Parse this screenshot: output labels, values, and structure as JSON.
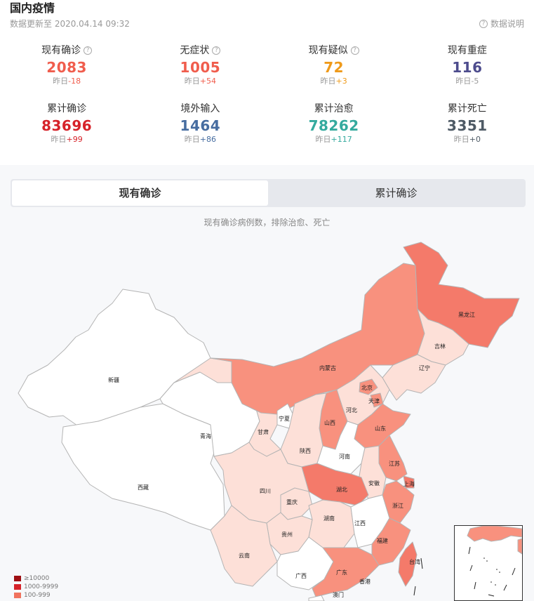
{
  "header": {
    "title": "国内疫情",
    "updated": "数据更新至 2020.04.14 09:32",
    "explain_label": "数据说明",
    "qmark": "?"
  },
  "stats": [
    {
      "label": "现有确诊",
      "help": true,
      "value": "2083",
      "delta_prefix": "昨日",
      "delta": "-18",
      "color": "#f05d4d",
      "delta_color": "#f05d4d"
    },
    {
      "label": "无症状",
      "help": true,
      "value": "1005",
      "delta_prefix": "昨日",
      "delta": "+54",
      "color": "#f05d4d",
      "delta_color": "#f05d4d"
    },
    {
      "label": "现有疑似",
      "help": true,
      "value": "72",
      "delta_prefix": "昨日",
      "delta": "+3",
      "color": "#ef9a1a",
      "delta_color": "#ef9a1a"
    },
    {
      "label": "现有重症",
      "help": false,
      "value": "116",
      "delta_prefix": "昨日",
      "delta": "-5",
      "color": "#4d4c8d",
      "delta_color": "#999999"
    },
    {
      "label": "累计确诊",
      "help": false,
      "value": "83696",
      "delta_prefix": "昨日",
      "delta": "+99",
      "color": "#d6232a",
      "delta_color": "#d6232a"
    },
    {
      "label": "境外输入",
      "help": false,
      "value": "1464",
      "delta_prefix": "昨日",
      "delta": "+86",
      "color": "#476da0",
      "delta_color": "#476da0"
    },
    {
      "label": "累计治愈",
      "help": false,
      "value": "78262",
      "delta_prefix": "昨日",
      "delta": "+117",
      "color": "#34aa9e",
      "delta_color": "#34aa9e"
    },
    {
      "label": "累计死亡",
      "help": false,
      "value": "3351",
      "delta_prefix": "昨日",
      "delta": "+0",
      "color": "#4e5a65",
      "delta_color": "#4e5a65"
    }
  ],
  "tabs": [
    {
      "label": "现有确诊",
      "active": true
    },
    {
      "label": "累计确诊",
      "active": false
    }
  ],
  "map_note": "现有确诊病例数，排除治愈、死亡",
  "provinces": {
    "xinjiang": "新疆",
    "xizang": "西藏",
    "qinghai": "青海",
    "gansu": "甘肃",
    "neimenggu": "内蒙古",
    "heilongjiang": "黑龙江",
    "jilin": "吉林",
    "liaoning": "辽宁",
    "beijing": "北京",
    "tianjin": "天津",
    "hebei": "河北",
    "shanxi": "山西",
    "shandong": "山东",
    "ningxia": "宁夏",
    "shaanxi": "陕西",
    "henan": "河南",
    "jiangsu": "江苏",
    "anhui": "安徽",
    "shanghai": "上海",
    "hubei": "湖北",
    "sichuan": "四川",
    "chongqing": "重庆",
    "zhejiang": "浙江",
    "hunan": "湖南",
    "jiangxi": "江西",
    "guizhou": "贵州",
    "fujian": "福建",
    "yunnan": "云南",
    "guangxi": "广西",
    "guangdong": "广东",
    "taiwan": "台湾",
    "hongkong": "香港",
    "macau": "澳门"
  },
  "legend": [
    {
      "label": "≥10000",
      "color": "#9e0f13"
    },
    {
      "label": "1000-9999",
      "color": "#d6232a"
    },
    {
      "label": "100-999",
      "color": "#f0735e"
    }
  ],
  "colors": {
    "level_100": "#f47a6a",
    "level_50": "#f8917e",
    "level_10": "#fde0d8",
    "level_0": "#ffffff",
    "border": "#b4b4b4"
  }
}
